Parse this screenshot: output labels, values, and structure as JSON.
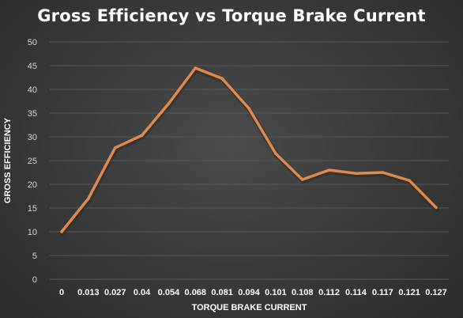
{
  "chart_data": {
    "type": "line",
    "title": "Gross Efficiency vs Torque Brake Current",
    "xlabel": "TORQUE BRAKE CURRENT",
    "ylabel": "GROSS EFFICIENCY",
    "categories": [
      "0",
      "0.013",
      "0.027",
      "0.04",
      "0.054",
      "0.068",
      "0.081",
      "0.094",
      "0.101",
      "0.108",
      "0.112",
      "0.114",
      "0.117",
      "0.121",
      "0.127"
    ],
    "series": [
      {
        "values": [
          10,
          17,
          27.7,
          30.3,
          37,
          44.5,
          42.3,
          36,
          26.5,
          21,
          23,
          22.3,
          22.5,
          20.8,
          15.1
        ]
      }
    ],
    "ylim": [
      0,
      50
    ],
    "yticks": [
      "0",
      "5",
      "10",
      "15",
      "20",
      "25",
      "30",
      "35",
      "40",
      "45",
      "50"
    ],
    "grid": true,
    "legend": "none",
    "colors": {
      "line": "#e08a4e",
      "grid": "#5a5a5a",
      "background": "#3d3d3d"
    }
  }
}
